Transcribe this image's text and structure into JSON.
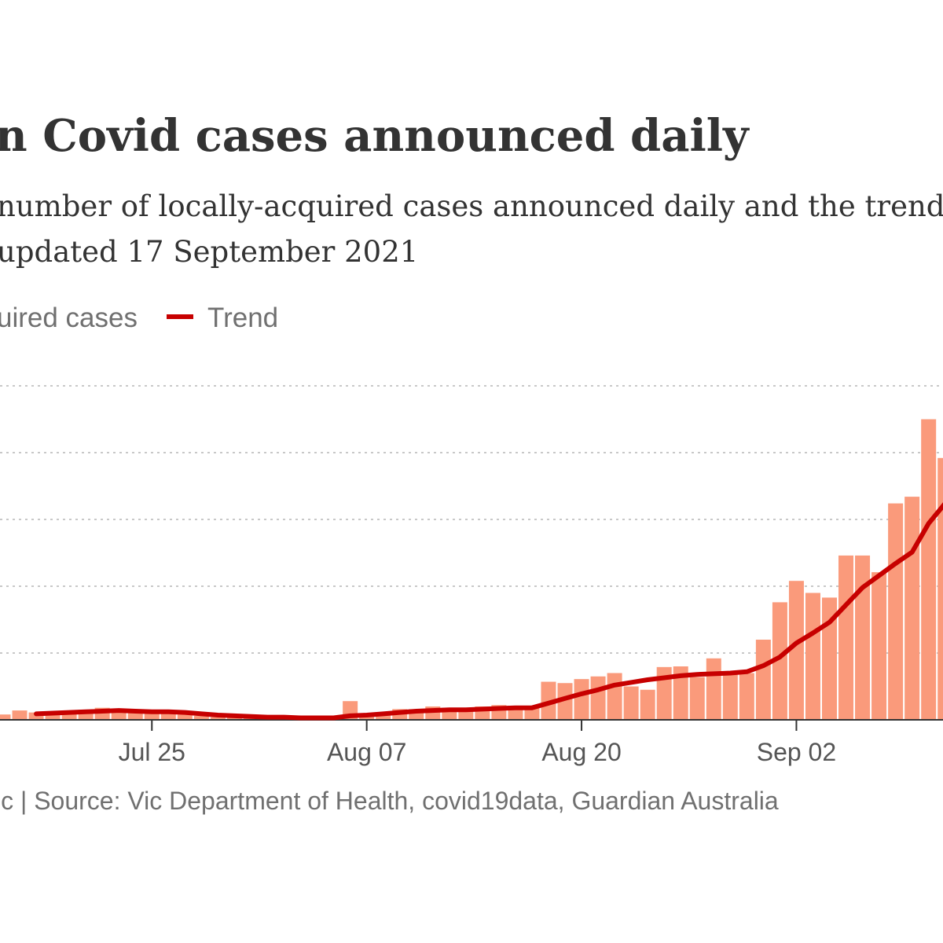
{
  "chart_data": {
    "type": "bar",
    "title": "n Covid cases announced daily",
    "subtitle": [
      "number of locally-acquired cases announced daily and the trend as a",
      "updated 17 September 2021"
    ],
    "source": "ic | Source: Vic Department of Health, covid19data, Guardian Australia",
    "categories": [
      null,
      null,
      null,
      null,
      null,
      null,
      null,
      null,
      null,
      "Jul 25",
      null,
      null,
      null,
      null,
      null,
      null,
      null,
      null,
      null,
      null,
      null,
      null,
      "Aug 07",
      null,
      null,
      null,
      null,
      null,
      null,
      null,
      null,
      null,
      null,
      null,
      null,
      "Aug 20",
      null,
      null,
      null,
      null,
      null,
      null,
      null,
      null,
      null,
      null,
      null,
      null,
      "Sep 02",
      null,
      null,
      null,
      null,
      null,
      null,
      null,
      null,
      null
    ],
    "series": [
      {
        "name": "uired cases",
        "type": "bar",
        "color": "#fa9a7b",
        "values": [
          8,
          14,
          11,
          9,
          11,
          15,
          18,
          14,
          11,
          11,
          11,
          8,
          6,
          4,
          5,
          3,
          2,
          1,
          3,
          2,
          1,
          28,
          7,
          11,
          16,
          16,
          20,
          18,
          18,
          20,
          22,
          21,
          21,
          57,
          55,
          61,
          65,
          70,
          50,
          45,
          79,
          80,
          64,
          92,
          68,
          70,
          120,
          176,
          208,
          190,
          183,
          246,
          246,
          221,
          324,
          334,
          450,
          392
        ]
      },
      {
        "name": "Trend",
        "type": "line",
        "color": "#c70000",
        "values": [
          null,
          null,
          9,
          10,
          11,
          12,
          13,
          14,
          13,
          12,
          12,
          11,
          9,
          7,
          6,
          5,
          4,
          4,
          3,
          3,
          3,
          6,
          7,
          9,
          11,
          13,
          14,
          15,
          15,
          16,
          17,
          18,
          18,
          25,
          32,
          39,
          45,
          52,
          56,
          60,
          63,
          66,
          68,
          69,
          70,
          72,
          81,
          94,
          115,
          130,
          146,
          172,
          198,
          216,
          234,
          251,
          294,
          324
        ]
      }
    ],
    "ylim": [
      0,
      500
    ],
    "yticks": [
      0,
      100,
      200,
      300,
      400,
      500
    ],
    "grid": true
  }
}
